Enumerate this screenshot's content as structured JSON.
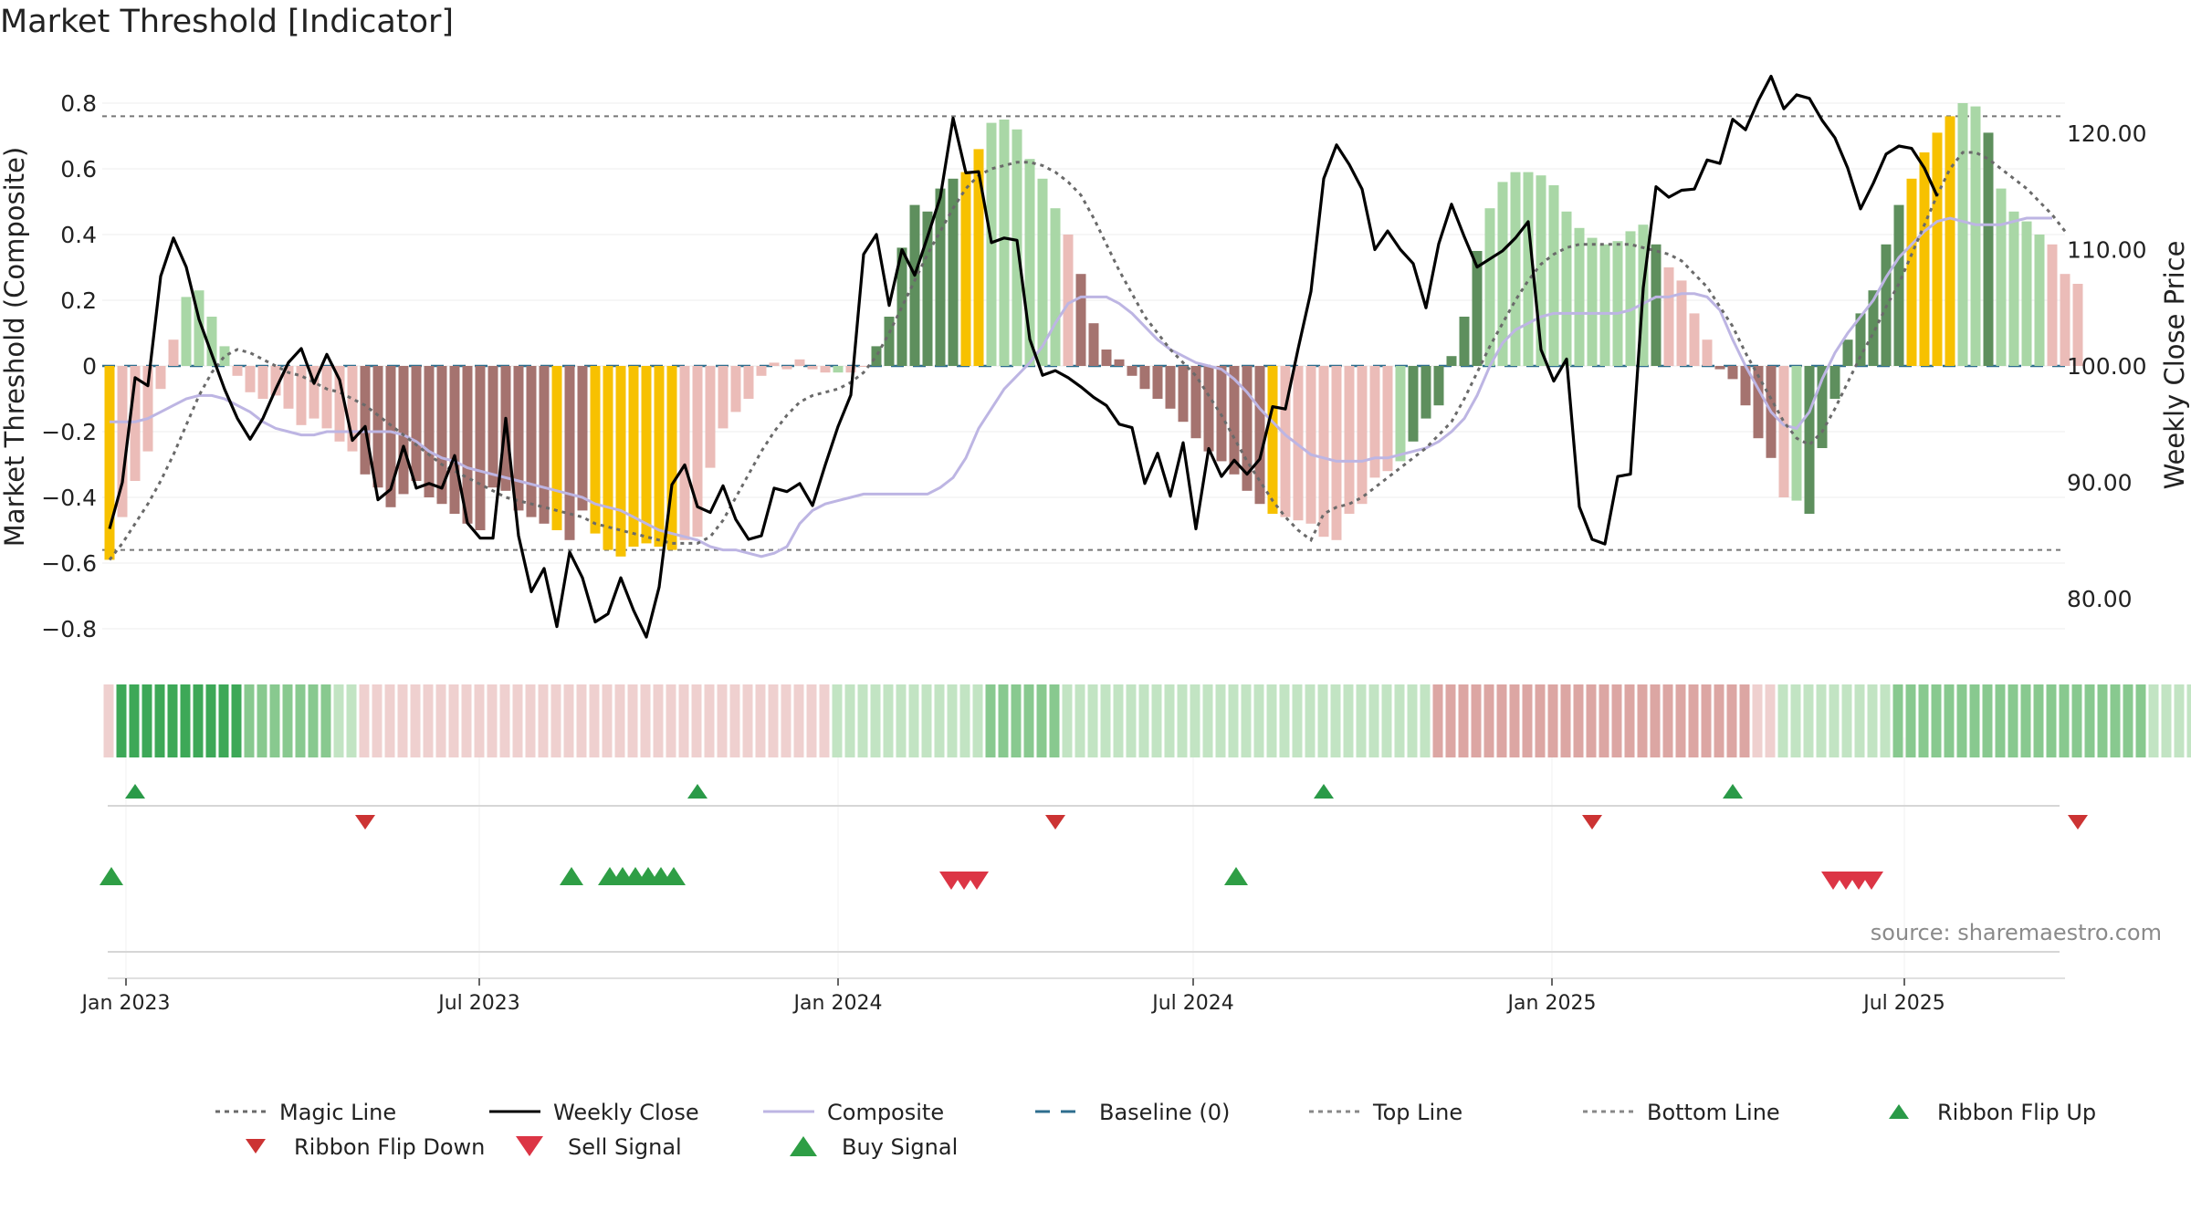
{
  "title": "Market Threshold [Indicator]",
  "source": "source: sharemaestro.com",
  "colors": {
    "strong_green": "#3da857",
    "mid_green": "#5e8f5d",
    "light_green": "#a9d7a6",
    "strong_red": "#a5736f",
    "light_red": "#ebbcb8",
    "yellow": "#f7c100",
    "close": "#000000",
    "composite": "#bdb5e3",
    "magic": "#6a6a6a",
    "baseline": "#2e6e8e"
  },
  "chart_data": {
    "type": "bar",
    "ylabel": "Market Threshold (Composite)",
    "y2label": "Weekly Close Price",
    "ylim": [
      -0.89,
      0.89
    ],
    "y2lim": [
      75.95,
      125.83
    ],
    "yticks": [
      "0.8",
      "0.6",
      "0.4",
      "0.2",
      "0",
      "−0.2",
      "−0.4",
      "−0.6",
      "−0.8"
    ],
    "y2ticks": [
      "120.00",
      "110.00",
      "100.00",
      "90.00",
      "80.00"
    ],
    "xticks": [
      "Jan 2023",
      "Jul 2023",
      "Jan 2024",
      "Jul 2024",
      "Jan 2025",
      "Jul 2025"
    ],
    "top_line": 0.76,
    "bottom_line": -0.56,
    "baseline": 0,
    "composite_bars": [
      -0.59,
      -0.46,
      -0.35,
      -0.26,
      -0.07,
      0.08,
      0.21,
      0.23,
      0.15,
      0.06,
      -0.03,
      -0.08,
      -0.1,
      -0.09,
      -0.13,
      -0.18,
      -0.16,
      -0.19,
      -0.23,
      -0.26,
      -0.33,
      -0.37,
      -0.43,
      -0.39,
      -0.35,
      -0.4,
      -0.42,
      -0.45,
      -0.48,
      -0.5,
      -0.37,
      -0.38,
      -0.44,
      -0.46,
      -0.48,
      -0.5,
      -0.53,
      -0.44,
      -0.51,
      -0.56,
      -0.58,
      -0.55,
      -0.54,
      -0.55,
      -0.56,
      -0.53,
      -0.52,
      -0.31,
      -0.19,
      -0.14,
      -0.1,
      -0.03,
      0.01,
      -0.01,
      0.02,
      -0.01,
      -0.02,
      -0.02,
      -0.02,
      0,
      0.06,
      0.15,
      0.36,
      0.49,
      0.47,
      0.54,
      0.57,
      0.59,
      0.66,
      0.74,
      0.75,
      0.72,
      0.63,
      0.57,
      0.48,
      0.4,
      0.28,
      0.13,
      0.05,
      0.02,
      -0.03,
      -0.07,
      -0.1,
      -0.13,
      -0.17,
      -0.22,
      -0.26,
      -0.29,
      -0.33,
      -0.38,
      -0.42,
      -0.45,
      -0.46,
      -0.47,
      -0.48,
      -0.52,
      -0.53,
      -0.45,
      -0.42,
      -0.34,
      -0.32,
      -0.29,
      -0.23,
      -0.16,
      -0.12,
      0.03,
      0.15,
      0.35,
      0.48,
      0.56,
      0.59,
      0.59,
      0.58,
      0.55,
      0.47,
      0.42,
      0.39,
      0.37,
      0.38,
      0.41,
      0.43,
      0.37,
      0.3,
      0.26,
      0.16,
      0.08,
      -0.01,
      -0.04,
      -0.12,
      -0.22,
      -0.28,
      -0.4,
      -0.41,
      -0.45,
      -0.25,
      -0.1,
      0.08,
      0.16,
      0.23,
      0.37,
      0.49,
      0.57,
      0.65,
      0.71,
      0.76,
      0.8,
      0.79,
      0.71,
      0.54,
      0.47,
      0.44,
      0.4,
      0.37,
      0.28,
      0.25
    ],
    "bar_colors": "yrrrrrggggrrrrrrrrrrRRRRRRRRRRRRRRRyRRyyyyyyyrrrrrrrrrrrrgrrGGGGGGGyyggggggrRRRRRRRRRRRRRRRyrrrrrrrrrgGGGGGGgggggggggggggGrrrrRRRRRrgGGGGGGGGyyyyggGgggg",
    "weekly_close": [
      86,
      90,
      99,
      98.3,
      107.7,
      111,
      108.5,
      104,
      101,
      98,
      95.5,
      93.7,
      95.5,
      98,
      100.3,
      101.5,
      98.5,
      101,
      98.8,
      93.6,
      94.8,
      88.5,
      89.4,
      93.1,
      89.5,
      89.9,
      89.5,
      92.3,
      86.5,
      85.2,
      85.2,
      95.5,
      85.4,
      80.6,
      82.6,
      77.6,
      84,
      81.8,
      78,
      78.7,
      81.8,
      79,
      76.7,
      81,
      89.8,
      91.5,
      87.9,
      87.4,
      89.7,
      86.8,
      85.1,
      85.4,
      89.5,
      89.2,
      89.9,
      88,
      91.5,
      94.8,
      97.5,
      109.6,
      111.3,
      105.2,
      110,
      107.8,
      111.1,
      114.5,
      121.3,
      116.6,
      116.7,
      110.6,
      111,
      110.8,
      102.3,
      99.2,
      99.6,
      99,
      98.2,
      97.3,
      96.6,
      95,
      94.7,
      89.9,
      92.5,
      88.8,
      93.4,
      86,
      92.9,
      90.5,
      91.9,
      90.7,
      92,
      96.5,
      96.3,
      101.5,
      106.4,
      116.1,
      119,
      117.3,
      115.2,
      110,
      111.6,
      110,
      108.8,
      105,
      110.5,
      113.9,
      111.1,
      108.5,
      109.2,
      109.9,
      111,
      112.4,
      101.4,
      98.7,
      100.6,
      87.9,
      85.1,
      84.7,
      90.5,
      90.7,
      106.7,
      115.4,
      114.5,
      115.1,
      115.2,
      117.7,
      117.4,
      121.2,
      120.3,
      122.8,
      124.9,
      122.1,
      123.3,
      123,
      121.1,
      119.6,
      117,
      113.5,
      115.7,
      118.2,
      118.9,
      118.7,
      117,
      114.6
    ],
    "composite_line": [
      -0.17,
      -0.17,
      -0.17,
      -0.16,
      -0.14,
      -0.12,
      -0.1,
      -0.09,
      -0.09,
      -0.1,
      -0.12,
      -0.14,
      -0.17,
      -0.19,
      -0.2,
      -0.21,
      -0.21,
      -0.2,
      -0.2,
      -0.2,
      -0.2,
      -0.2,
      -0.2,
      -0.21,
      -0.23,
      -0.26,
      -0.28,
      -0.29,
      -0.31,
      -0.32,
      -0.33,
      -0.34,
      -0.35,
      -0.36,
      -0.37,
      -0.38,
      -0.39,
      -0.4,
      -0.42,
      -0.43,
      -0.44,
      -0.46,
      -0.48,
      -0.5,
      -0.51,
      -0.52,
      -0.53,
      -0.55,
      -0.56,
      -0.56,
      -0.57,
      -0.58,
      -0.57,
      -0.55,
      -0.48,
      -0.44,
      -0.42,
      -0.41,
      -0.4,
      -0.39,
      -0.39,
      -0.39,
      -0.39,
      -0.39,
      -0.39,
      -0.37,
      -0.34,
      -0.28,
      -0.19,
      -0.13,
      -0.07,
      -0.03,
      0.01,
      0.06,
      0.13,
      0.19,
      0.21,
      0.21,
      0.21,
      0.19,
      0.16,
      0.12,
      0.08,
      0.05,
      0.03,
      0.01,
      0,
      -0.01,
      -0.04,
      -0.08,
      -0.13,
      -0.17,
      -0.21,
      -0.24,
      -0.27,
      -0.28,
      -0.29,
      -0.29,
      -0.29,
      -0.28,
      -0.28,
      -0.27,
      -0.26,
      -0.25,
      -0.23,
      -0.2,
      -0.16,
      -0.09,
      0,
      0.07,
      0.11,
      0.13,
      0.15,
      0.16,
      0.16,
      0.16,
      0.16,
      0.16,
      0.16,
      0.17,
      0.19,
      0.21,
      0.21,
      0.22,
      0.22,
      0.21,
      0.17,
      0.08,
      0,
      -0.07,
      -0.14,
      -0.18,
      -0.19,
      -0.14,
      -0.04,
      0.04,
      0.1,
      0.15,
      0.2,
      0.27,
      0.33,
      0.37,
      0.41,
      0.44,
      0.45,
      0.44,
      0.43,
      0.43,
      0.43,
      0.44,
      0.45,
      0.45,
      0.45
    ],
    "magic_line": [
      -0.59,
      -0.54,
      -0.48,
      -0.42,
      -0.35,
      -0.27,
      -0.18,
      -0.09,
      -0.02,
      0.03,
      0.05,
      0.04,
      0.02,
      0,
      -0.02,
      -0.03,
      -0.05,
      -0.07,
      -0.08,
      -0.1,
      -0.12,
      -0.15,
      -0.18,
      -0.21,
      -0.24,
      -0.27,
      -0.3,
      -0.32,
      -0.34,
      -0.36,
      -0.38,
      -0.4,
      -0.41,
      -0.42,
      -0.43,
      -0.44,
      -0.45,
      -0.46,
      -0.48,
      -0.49,
      -0.5,
      -0.51,
      -0.52,
      -0.53,
      -0.54,
      -0.54,
      -0.54,
      -0.52,
      -0.47,
      -0.4,
      -0.33,
      -0.26,
      -0.2,
      -0.15,
      -0.11,
      -0.09,
      -0.08,
      -0.07,
      -0.05,
      -0.02,
      0.03,
      0.1,
      0.18,
      0.26,
      0.34,
      0.41,
      0.48,
      0.54,
      0.58,
      0.6,
      0.61,
      0.62,
      0.62,
      0.61,
      0.59,
      0.56,
      0.52,
      0.45,
      0.37,
      0.29,
      0.22,
      0.15,
      0.1,
      0.05,
      0.01,
      -0.03,
      -0.09,
      -0.15,
      -0.22,
      -0.29,
      -0.35,
      -0.41,
      -0.46,
      -0.5,
      -0.53,
      -0.45,
      -0.43,
      -0.42,
      -0.4,
      -0.37,
      -0.34,
      -0.31,
      -0.28,
      -0.25,
      -0.21,
      -0.17,
      -0.1,
      -0.02,
      0.06,
      0.13,
      0.2,
      0.26,
      0.31,
      0.34,
      0.36,
      0.37,
      0.37,
      0.37,
      0.37,
      0.37,
      0.36,
      0.35,
      0.34,
      0.32,
      0.28,
      0.24,
      0.18,
      0.12,
      0.04,
      -0.03,
      -0.1,
      -0.17,
      -0.22,
      -0.24,
      -0.2,
      -0.13,
      -0.05,
      0.03,
      0.1,
      0.18,
      0.25,
      0.34,
      0.43,
      0.52,
      0.6,
      0.65,
      0.65,
      0.63,
      0.6,
      0.57,
      0.54,
      0.5,
      0.46,
      0.41
    ],
    "ribbon_colors": "rGGGGGGGGGGgggggggllrrrrrrrrrrrrrrrrrrrrrrrrrrrrrrrrrrrrrllllllllllllgggggglllllllllllllllllllllllllllllRRRRRRRRRRRRRRRRRRRRRRRRRrrlllllllllgggggggggggggggggggglllllllllllllrrrRRRRRRRRRRRRrrllllllgggggggggggggglllllrrr",
    "ribbon_flip_up": [
      1,
      45,
      94,
      126
    ],
    "ribbon_flip_down": [
      19,
      73,
      115,
      153
    ],
    "buy_signal": [
      0,
      36,
      39,
      40,
      41,
      42,
      43,
      44,
      88
    ],
    "sell_signal": [
      65,
      66,
      67,
      134,
      135,
      136,
      137
    ],
    "legend": [
      {
        "label": "Magic Line",
        "style": "dotted",
        "color": "#6a6a6a"
      },
      {
        "label": "Weekly Close",
        "style": "solid",
        "color": "#000000"
      },
      {
        "label": "Composite",
        "style": "solid",
        "color": "#bdb5e3"
      },
      {
        "label": "Baseline (0)",
        "style": "dashed",
        "color": "#2e6e8e"
      },
      {
        "label": "Top Line",
        "style": "dotted",
        "color": "#888888"
      },
      {
        "label": "Bottom Line",
        "style": "dotted",
        "color": "#888888"
      },
      {
        "label": "Ribbon Flip Up",
        "style": "tri-up-small",
        "color": "#2a9a48"
      },
      {
        "label": "Ribbon Flip Down",
        "style": "tri-down-small",
        "color": "#cc3333"
      },
      {
        "label": "Sell Signal",
        "style": "tri-down",
        "color": "#dc3545"
      },
      {
        "label": "Buy Signal",
        "style": "tri-up",
        "color": "#2e9e45"
      }
    ]
  }
}
